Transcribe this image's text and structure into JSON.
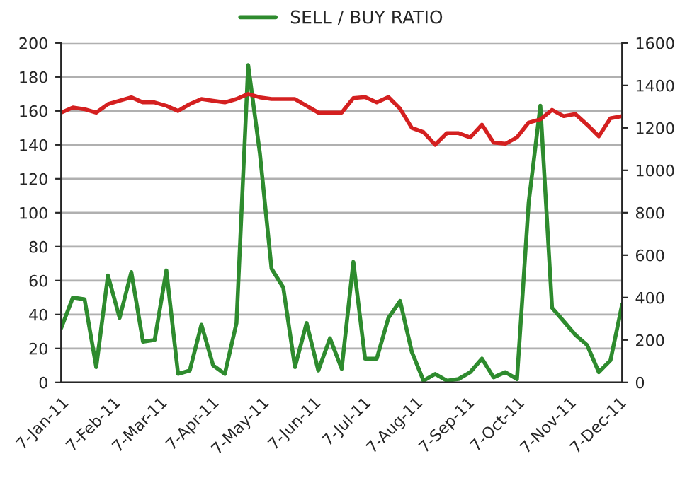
{
  "chart_data": {
    "type": "line",
    "x": [
      "2011-01-07",
      "2011-01-14",
      "2011-01-21",
      "2011-01-28",
      "2011-02-04",
      "2011-02-11",
      "2011-02-18",
      "2011-02-25",
      "2011-03-04",
      "2011-03-11",
      "2011-03-18",
      "2011-03-25",
      "2011-04-01",
      "2011-04-08",
      "2011-04-15",
      "2011-04-22",
      "2011-04-29",
      "2011-05-06",
      "2011-05-13",
      "2011-05-20",
      "2011-05-27",
      "2011-06-03",
      "2011-06-10",
      "2011-06-17",
      "2011-06-24",
      "2011-07-01",
      "2011-07-08",
      "2011-07-15",
      "2011-07-22",
      "2011-07-29",
      "2011-08-05",
      "2011-08-12",
      "2011-08-19",
      "2011-08-26",
      "2011-09-02",
      "2011-09-09",
      "2011-09-16",
      "2011-09-23",
      "2011-09-30",
      "2011-10-07",
      "2011-10-14",
      "2011-10-21",
      "2011-10-28",
      "2011-11-04",
      "2011-11-11",
      "2011-11-18",
      "2011-11-25",
      "2011-12-02",
      "2011-12-09"
    ],
    "series": [
      {
        "name": "SELL / BUY RATIO",
        "color": "#2e8b2e",
        "values": [
          32,
          50,
          49,
          9,
          63,
          38,
          65,
          24,
          25,
          66,
          5,
          7,
          34,
          10,
          5,
          35,
          187,
          135,
          67,
          56,
          9,
          35,
          7,
          26,
          8,
          71,
          14,
          14,
          38,
          48,
          18,
          1,
          5,
          1,
          2,
          6,
          14,
          3,
          6,
          2,
          106,
          163,
          44,
          36,
          28,
          22,
          6,
          13,
          46
        ]
      },
      {
        "color": "#d42020",
        "axis": "y2",
        "values": [
          1272,
          1296,
          1288,
          1272,
          1312,
          1328,
          1344,
          1320,
          1320,
          1304,
          1280,
          1312,
          1336,
          1328,
          1320,
          1336,
          1360,
          1344,
          1336,
          1336,
          1336,
          1304,
          1272,
          1272,
          1272,
          1340,
          1345,
          1320,
          1345,
          1290,
          1200,
          1180,
          1120,
          1175,
          1175,
          1155,
          1215,
          1130,
          1125,
          1155,
          1225,
          1240,
          1285,
          1255,
          1265,
          1215,
          1160,
          1245,
          1255
        ]
      }
    ],
    "xlim": [
      "2011-01-07",
      "2011-12-09"
    ],
    "xticks": [
      {
        "value": "2011-01-07",
        "label": "7-Jan-11"
      },
      {
        "value": "2011-02-07",
        "label": "7-Feb-11"
      },
      {
        "value": "2011-03-07",
        "label": "7-Mar-11"
      },
      {
        "value": "2011-04-07",
        "label": "7-Apr-11"
      },
      {
        "value": "2011-05-07",
        "label": "7-May-11"
      },
      {
        "value": "2011-06-07",
        "label": "7-Jun-11"
      },
      {
        "value": "2011-07-07",
        "label": "7-Jul-11"
      },
      {
        "value": "2011-08-07",
        "label": "7-Aug-11"
      },
      {
        "value": "2011-09-07",
        "label": "7-Sep-11"
      },
      {
        "value": "2011-10-07",
        "label": "7-Oct-11"
      },
      {
        "value": "2011-11-07",
        "label": "7-Nov-11"
      },
      {
        "value": "2011-12-07",
        "label": "7-Dec-11"
      }
    ],
    "ylim": [
      0,
      200
    ],
    "yticks": [
      0,
      20,
      40,
      60,
      80,
      100,
      120,
      140,
      160,
      180,
      200
    ],
    "y2lim": [
      0,
      1600
    ],
    "y2ticks": [
      0,
      200,
      400,
      600,
      800,
      1000,
      1200,
      1400,
      1600
    ],
    "grid": "y",
    "legend": "top",
    "marker": "none",
    "line_style": "solid"
  }
}
